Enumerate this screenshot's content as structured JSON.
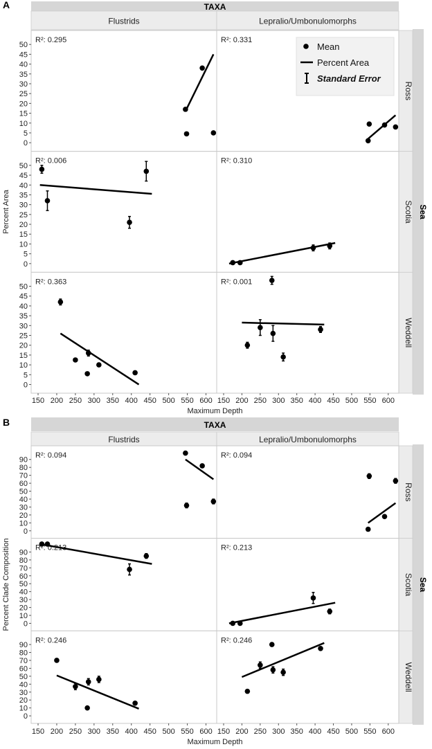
{
  "chart_data": [
    {
      "type": "scatter",
      "panel_label": "A",
      "header": "TAXA",
      "row_group": "Sea",
      "columns": [
        "Flustrids",
        "Lepralio/Umbonulomorphs"
      ],
      "rows": [
        "Ross",
        "Scotia",
        "Weddell"
      ],
      "xlabel": "Maximum Depth",
      "ylabel": "Percent Area",
      "xlim": [
        150,
        625
      ],
      "ylim": [
        -3,
        55
      ],
      "xticks": [
        "150",
        "200",
        "250",
        "300",
        "350",
        "400",
        "450",
        "500",
        "550",
        "600"
      ],
      "yticks": [
        "0",
        "5",
        "10",
        "15",
        "20",
        "25",
        "30",
        "35",
        "40",
        "45",
        "50"
      ],
      "legend": {
        "mean": "Mean",
        "line": "Percent Area",
        "error": "Standard Error"
      },
      "cells": [
        {
          "row": "Ross",
          "col": "Flustrids",
          "r2": "R²: 0.295",
          "points": [
            {
              "x": 545,
              "y": 17,
              "e": 0
            },
            {
              "x": 548,
              "y": 4.5,
              "e": 0
            },
            {
              "x": 590,
              "y": 38,
              "e": 0
            },
            {
              "x": 620,
              "y": 5,
              "e": 0
            }
          ],
          "fit": [
            [
              545,
              16
            ],
            [
              620,
              45
            ]
          ]
        },
        {
          "row": "Ross",
          "col": "Lepralio/Umbonulomorphs",
          "r2": "R²: 0.331",
          "points": [
            {
              "x": 545,
              "y": 1,
              "e": 0
            },
            {
              "x": 548,
              "y": 9.5,
              "e": 0
            },
            {
              "x": 590,
              "y": 9,
              "e": 0
            },
            {
              "x": 620,
              "y": 8,
              "e": 0
            }
          ],
          "fit": [
            [
              545,
              2
            ],
            [
              620,
              14
            ]
          ]
        },
        {
          "row": "Scotia",
          "col": "Flustrids",
          "r2": "R²: 0.006",
          "points": [
            {
              "x": 160,
              "y": 48,
              "e": 2
            },
            {
              "x": 175,
              "y": 32,
              "e": 5
            },
            {
              "x": 395,
              "y": 21,
              "e": 3
            },
            {
              "x": 440,
              "y": 47,
              "e": 5
            }
          ],
          "fit": [
            [
              155,
              40
            ],
            [
              455,
              35.5
            ]
          ]
        },
        {
          "row": "Scotia",
          "col": "Lepralio/Umbonulomorphs",
          "r2": "R²: 0.310",
          "points": [
            {
              "x": 175,
              "y": 0.5,
              "e": 0
            },
            {
              "x": 195,
              "y": 0.5,
              "e": 0
            },
            {
              "x": 395,
              "y": 8,
              "e": 1.5
            },
            {
              "x": 440,
              "y": 9,
              "e": 1.5
            }
          ],
          "fit": [
            [
              165,
              0
            ],
            [
              455,
              10.5
            ]
          ]
        },
        {
          "row": "Weddell",
          "col": "Flustrids",
          "r2": "R²: 0.363",
          "points": [
            {
              "x": 210,
              "y": 42,
              "e": 1.5
            },
            {
              "x": 250,
              "y": 12.5,
              "e": 0
            },
            {
              "x": 282,
              "y": 5.5,
              "e": 0
            },
            {
              "x": 285,
              "y": 16,
              "e": 1.5
            },
            {
              "x": 313,
              "y": 10,
              "e": 0
            },
            {
              "x": 410,
              "y": 6,
              "e": 0
            }
          ],
          "fit": [
            [
              210,
              26
            ],
            [
              420,
              0
            ]
          ]
        },
        {
          "row": "Weddell",
          "col": "Lepralio/Umbonulomorphs",
          "r2": "R²: 0.001",
          "points": [
            {
              "x": 215,
              "y": 20,
              "e": 1.5
            },
            {
              "x": 250,
              "y": 29,
              "e": 4
            },
            {
              "x": 282,
              "y": 53,
              "e": 2
            },
            {
              "x": 285,
              "y": 26,
              "e": 4
            },
            {
              "x": 313,
              "y": 14,
              "e": 2
            },
            {
              "x": 415,
              "y": 28,
              "e": 1.5
            }
          ],
          "fit": [
            [
              200,
              31.5
            ],
            [
              425,
              30.5
            ]
          ]
        }
      ]
    },
    {
      "type": "scatter",
      "panel_label": "B",
      "header": "TAXA",
      "row_group": "Sea",
      "columns": [
        "Flustrids",
        "Lepralio/Umbonulomorphs"
      ],
      "rows": [
        "Ross",
        "Scotia",
        "Weddell"
      ],
      "xlabel": "Maximum Depth",
      "ylabel": "Percent Clade Composition",
      "xlim": [
        150,
        625
      ],
      "ylim": [
        -6,
        102
      ],
      "xticks": [
        "150",
        "200",
        "250",
        "300",
        "350",
        "400",
        "450",
        "500",
        "550",
        "600"
      ],
      "yticks": [
        "0",
        "10",
        "20",
        "30",
        "40",
        "50",
        "60",
        "70",
        "80",
        "90"
      ],
      "cells": [
        {
          "row": "Ross",
          "col": "Flustrids",
          "r2": "R²: 0.094",
          "points": [
            {
              "x": 545,
              "y": 98,
              "e": 0
            },
            {
              "x": 548,
              "y": 32,
              "e": 3
            },
            {
              "x": 590,
              "y": 82,
              "e": 2
            },
            {
              "x": 620,
              "y": 37,
              "e": 3
            }
          ],
          "fit": [
            [
              545,
              90
            ],
            [
              620,
              65
            ]
          ]
        },
        {
          "row": "Ross",
          "col": "Lepralio/Umbonulomorphs",
          "r2": "R²: 0.094",
          "points": [
            {
              "x": 545,
              "y": 2,
              "e": 0
            },
            {
              "x": 548,
              "y": 69,
              "e": 3
            },
            {
              "x": 590,
              "y": 18,
              "e": 2
            },
            {
              "x": 620,
              "y": 63,
              "e": 3
            }
          ],
          "fit": [
            [
              545,
              10
            ],
            [
              620,
              35
            ]
          ]
        },
        {
          "row": "Scotia",
          "col": "Flustrids",
          "r2": "R²: 0.213",
          "points": [
            {
              "x": 160,
              "y": 100,
              "e": 0
            },
            {
              "x": 175,
              "y": 100,
              "e": 0
            },
            {
              "x": 395,
              "y": 68,
              "e": 7
            },
            {
              "x": 440,
              "y": 85,
              "e": 3
            }
          ],
          "fit": [
            [
              155,
              100
            ],
            [
              455,
              75
            ]
          ]
        },
        {
          "row": "Scotia",
          "col": "Lepralio/Umbonulomorphs",
          "r2": "R²: 0.213",
          "points": [
            {
              "x": 175,
              "y": 0,
              "e": 0
            },
            {
              "x": 195,
              "y": 0,
              "e": 0
            },
            {
              "x": 395,
              "y": 32,
              "e": 7
            },
            {
              "x": 440,
              "y": 15,
              "e": 3
            }
          ],
          "fit": [
            [
              165,
              0
            ],
            [
              455,
              26
            ]
          ]
        },
        {
          "row": "Weddell",
          "col": "Flustrids",
          "r2": "R²: 0.246",
          "points": [
            {
              "x": 200,
              "y": 70,
              "e": 2
            },
            {
              "x": 250,
              "y": 37,
              "e": 4
            },
            {
              "x": 282,
              "y": 10,
              "e": 0
            },
            {
              "x": 285,
              "y": 43,
              "e": 4
            },
            {
              "x": 313,
              "y": 46,
              "e": 4
            },
            {
              "x": 410,
              "y": 16,
              "e": 2
            }
          ],
          "fit": [
            [
              200,
              51
            ],
            [
              420,
              9
            ]
          ]
        },
        {
          "row": "Weddell",
          "col": "Lepralio/Umbonulomorphs",
          "r2": "R²: 0.246",
          "points": [
            {
              "x": 215,
              "y": 31,
              "e": 2
            },
            {
              "x": 250,
              "y": 64,
              "e": 4
            },
            {
              "x": 282,
              "y": 90,
              "e": 2
            },
            {
              "x": 285,
              "y": 58,
              "e": 4
            },
            {
              "x": 313,
              "y": 55,
              "e": 4
            },
            {
              "x": 415,
              "y": 85,
              "e": 2
            }
          ],
          "fit": [
            [
              200,
              49
            ],
            [
              425,
              92
            ]
          ]
        }
      ]
    }
  ]
}
